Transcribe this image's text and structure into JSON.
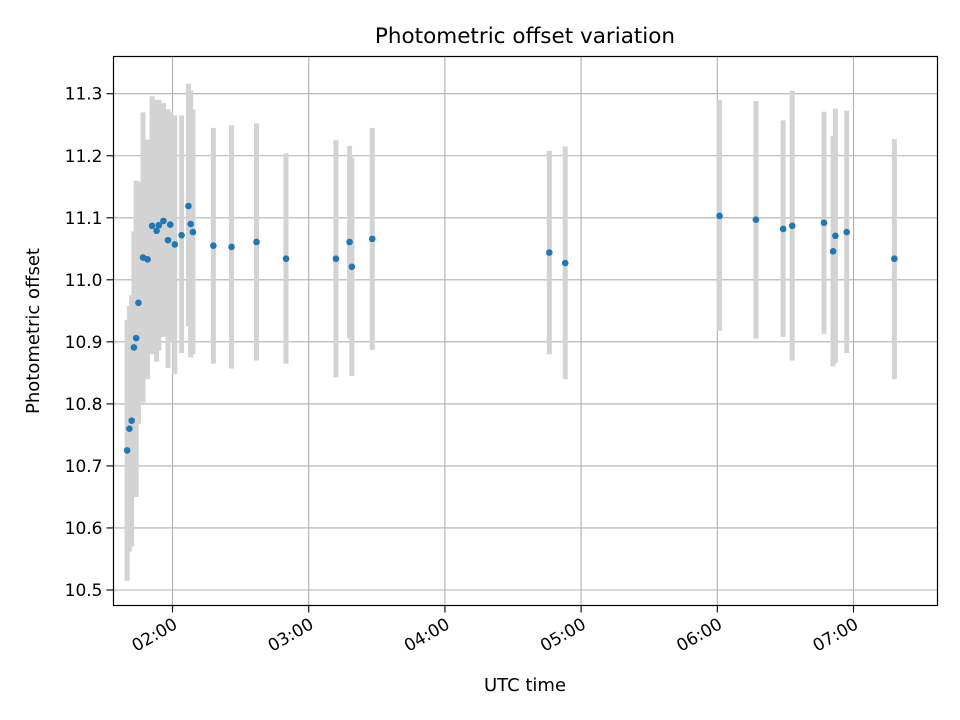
{
  "chart_data": {
    "type": "scatter",
    "title": "Photometric offset variation",
    "xlabel": "UTC time",
    "ylabel": "Photometric offset",
    "x_unit": "UTC HH:MM",
    "xlim": [
      "01:34",
      "07:37"
    ],
    "ylim": [
      10.475,
      11.36
    ],
    "x_ticks": [
      "02:00",
      "03:00",
      "04:00",
      "05:00",
      "06:00",
      "07:00"
    ],
    "y_ticks": [
      "10.5",
      "10.6",
      "10.7",
      "10.8",
      "10.9",
      "11.0",
      "11.1",
      "11.2",
      "11.3"
    ],
    "grid": true,
    "marker_color": "#1f77b4",
    "errorbar_color": "#d3d3d3",
    "points": [
      {
        "t": "01:40",
        "y": 10.725,
        "lo": 10.515,
        "hi": 10.935
      },
      {
        "t": "01:41",
        "y": 10.76,
        "lo": 10.562,
        "hi": 10.958
      },
      {
        "t": "01:42",
        "y": 10.773,
        "lo": 10.57,
        "hi": 10.975
      },
      {
        "t": "01:43",
        "y": 10.891,
        "lo": 10.702,
        "hi": 11.078
      },
      {
        "t": "01:44",
        "y": 10.906,
        "lo": 10.65,
        "hi": 11.16
      },
      {
        "t": "01:45",
        "y": 10.963,
        "lo": 10.768,
        "hi": 11.158
      },
      {
        "t": "01:47",
        "y": 11.036,
        "lo": 10.802,
        "hi": 11.27
      },
      {
        "t": "01:49",
        "y": 11.033,
        "lo": 10.84,
        "hi": 11.226
      },
      {
        "t": "01:51",
        "y": 11.087,
        "lo": 10.88,
        "hi": 11.296
      },
      {
        "t": "01:53",
        "y": 11.079,
        "lo": 10.868,
        "hi": 11.29
      },
      {
        "t": "01:54",
        "y": 11.088,
        "lo": 10.886,
        "hi": 11.29
      },
      {
        "t": "01:56",
        "y": 11.095,
        "lo": 10.908,
        "hi": 11.285
      },
      {
        "t": "01:58",
        "y": 11.064,
        "lo": 10.858,
        "hi": 11.275
      },
      {
        "t": "01:59",
        "y": 11.089,
        "lo": 10.902,
        "hi": 11.27
      },
      {
        "t": "02:01",
        "y": 11.057,
        "lo": 10.848,
        "hi": 11.265
      },
      {
        "t": "02:04",
        "y": 11.072,
        "lo": 10.882,
        "hi": 11.265
      },
      {
        "t": "02:07",
        "y": 11.119,
        "lo": 10.925,
        "hi": 11.316
      },
      {
        "t": "02:08",
        "y": 11.09,
        "lo": 10.875,
        "hi": 11.305
      },
      {
        "t": "02:09",
        "y": 11.077,
        "lo": 10.88,
        "hi": 11.275
      },
      {
        "t": "02:18",
        "y": 11.055,
        "lo": 10.865,
        "hi": 11.245
      },
      {
        "t": "02:26",
        "y": 11.053,
        "lo": 10.857,
        "hi": 11.249
      },
      {
        "t": "02:37",
        "y": 11.061,
        "lo": 10.87,
        "hi": 11.252
      },
      {
        "t": "02:50",
        "y": 11.034,
        "lo": 10.865,
        "hi": 11.204
      },
      {
        "t": "03:12",
        "y": 11.034,
        "lo": 10.843,
        "hi": 11.225
      },
      {
        "t": "03:18",
        "y": 11.061,
        "lo": 10.905,
        "hi": 11.216
      },
      {
        "t": "03:19",
        "y": 11.021,
        "lo": 10.845,
        "hi": 11.197
      },
      {
        "t": "03:28",
        "y": 11.066,
        "lo": 10.887,
        "hi": 11.245
      },
      {
        "t": "04:46",
        "y": 11.044,
        "lo": 10.88,
        "hi": 11.208
      },
      {
        "t": "04:53",
        "y": 11.027,
        "lo": 10.84,
        "hi": 11.215
      },
      {
        "t": "06:01",
        "y": 11.103,
        "lo": 10.918,
        "hi": 11.29
      },
      {
        "t": "06:17",
        "y": 11.097,
        "lo": 10.905,
        "hi": 11.288
      },
      {
        "t": "06:29",
        "y": 11.082,
        "lo": 10.908,
        "hi": 11.257
      },
      {
        "t": "06:33",
        "y": 11.087,
        "lo": 10.87,
        "hi": 11.305
      },
      {
        "t": "06:47",
        "y": 11.092,
        "lo": 10.913,
        "hi": 11.271
      },
      {
        "t": "06:51",
        "y": 11.046,
        "lo": 10.86,
        "hi": 11.232
      },
      {
        "t": "06:52",
        "y": 11.071,
        "lo": 10.866,
        "hi": 11.276
      },
      {
        "t": "06:57",
        "y": 11.077,
        "lo": 10.882,
        "hi": 11.273
      },
      {
        "t": "07:18",
        "y": 11.034,
        "lo": 10.84,
        "hi": 11.227
      }
    ]
  }
}
